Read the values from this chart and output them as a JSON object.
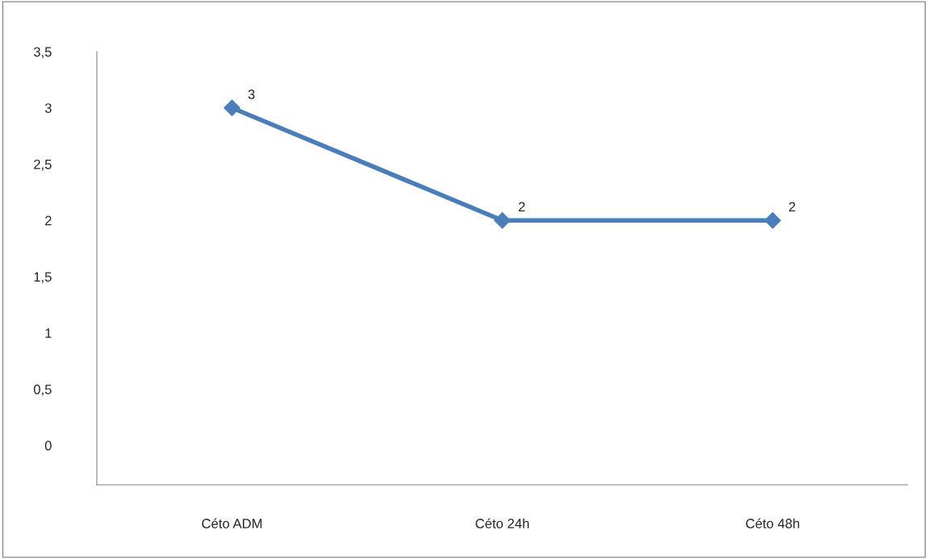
{
  "chart_data": {
    "type": "line",
    "categories": [
      "Céto ADM",
      "Céto 24h",
      "Céto 48h"
    ],
    "series": [
      {
        "color": "#4a7ebb",
        "values": [
          3,
          2,
          2
        ]
      }
    ],
    "ylim": [
      -0.35,
      3.5
    ],
    "yticks": [
      0,
      {
        "value": 0.5,
        "label": "0,5"
      },
      1,
      {
        "value": 1.5,
        "label": "1,5"
      },
      2,
      {
        "value": 2.5,
        "label": "2,5"
      },
      3,
      {
        "value": 3.5,
        "label": "3,5"
      }
    ],
    "marker": "diamond",
    "line_style": "solid",
    "data_labels": true,
    "grid": false,
    "legend": false
  }
}
